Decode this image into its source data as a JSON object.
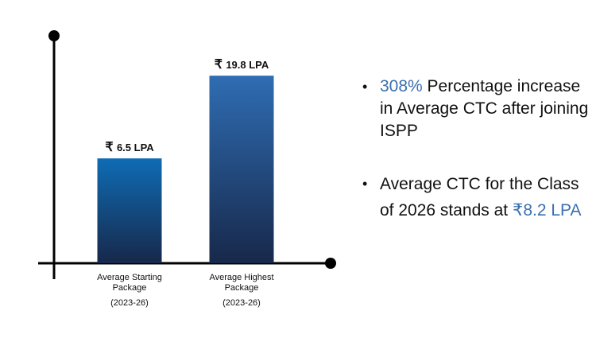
{
  "chart_data": {
    "type": "bar",
    "categories": [
      [
        "Average Starting",
        "Package",
        "(2023-26)"
      ],
      [
        "Average Highest",
        "Package",
        "(2023-26)"
      ]
    ],
    "values": [
      6.5,
      19.8
    ],
    "data_labels": [
      "6.5 LPA",
      "19.8 LPA"
    ],
    "currency_symbol": "₹",
    "unit": "LPA",
    "ylim": [
      0,
      26
    ],
    "grid": false,
    "bar_color_top": "#2f6db3",
    "bar_color_bottom": "#17284a"
  },
  "bullets": [
    {
      "highlight": "308%",
      "text": " Percentage increase in Average CTC after joining ISPP"
    },
    {
      "text": "Average CTC for the Class of 2026 stands at ",
      "highlight": "₹8.2 LPA"
    }
  ],
  "colors": {
    "accent": "#3a6fb0",
    "axis": "#000000"
  }
}
